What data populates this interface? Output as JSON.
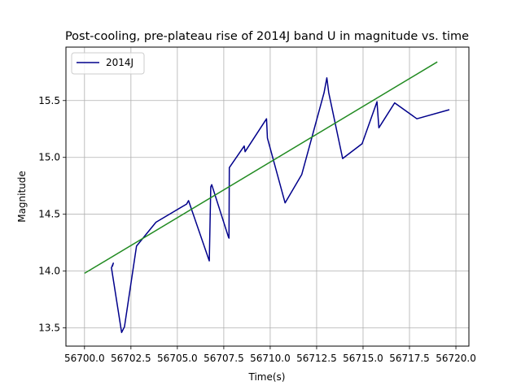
{
  "chart_data": {
    "type": "line",
    "title": "Post-cooling, pre-plateau rise of 2014J band U in magnitude vs. time",
    "xlabel": "Time(s)",
    "ylabel": "Magnitude",
    "xlim": [
      56699.0,
      56720.7
    ],
    "ylim": [
      13.34,
      15.97
    ],
    "x_ticks": [
      56700.0,
      56702.5,
      56705.0,
      56707.5,
      56710.0,
      56712.5,
      56715.0,
      56717.5,
      56720.0
    ],
    "x_tick_labels": [
      "56700.0",
      "56702.5",
      "56705.0",
      "56707.5",
      "56710.0",
      "56712.5",
      "56715.0",
      "56717.5",
      "56720.0"
    ],
    "y_ticks": [
      13.5,
      14.0,
      14.5,
      15.0,
      15.5
    ],
    "y_tick_labels": [
      "13.5",
      "14.0",
      "14.5",
      "15.0",
      "15.5"
    ],
    "grid": true,
    "legend": {
      "position": "top-left",
      "entries": [
        "2014J"
      ]
    },
    "series": [
      {
        "name": "2014J",
        "color": "#00008b",
        "x": [
          56701.5,
          56701.55,
          56701.45,
          56702.0,
          56702.15,
          56702.8,
          56703.85,
          56705.5,
          56705.6,
          56706.7,
          56706.72,
          56706.8,
          56706.85,
          56707.75,
          56707.78,
          56707.8,
          56708.6,
          56708.65,
          56709.8,
          56709.85,
          56710.8,
          56711.7,
          56712.9,
          56713.05,
          56713.15,
          56713.9,
          56714.95,
          56715.75,
          56715.85,
          56716.7,
          56717.9,
          56719.65
        ],
        "y": [
          14.04,
          14.07,
          14.03,
          13.46,
          13.51,
          14.22,
          14.43,
          14.59,
          14.62,
          14.1,
          14.09,
          14.74,
          14.76,
          14.3,
          14.29,
          14.91,
          15.1,
          15.05,
          15.34,
          15.17,
          14.6,
          14.85,
          15.57,
          15.7,
          15.57,
          14.99,
          15.12,
          15.49,
          15.26,
          15.48,
          15.34,
          15.42
        ]
      },
      {
        "color": "#228b22",
        "x": [
          56700.0,
          56719.0
        ],
        "y": [
          13.98,
          15.84
        ]
      }
    ]
  }
}
